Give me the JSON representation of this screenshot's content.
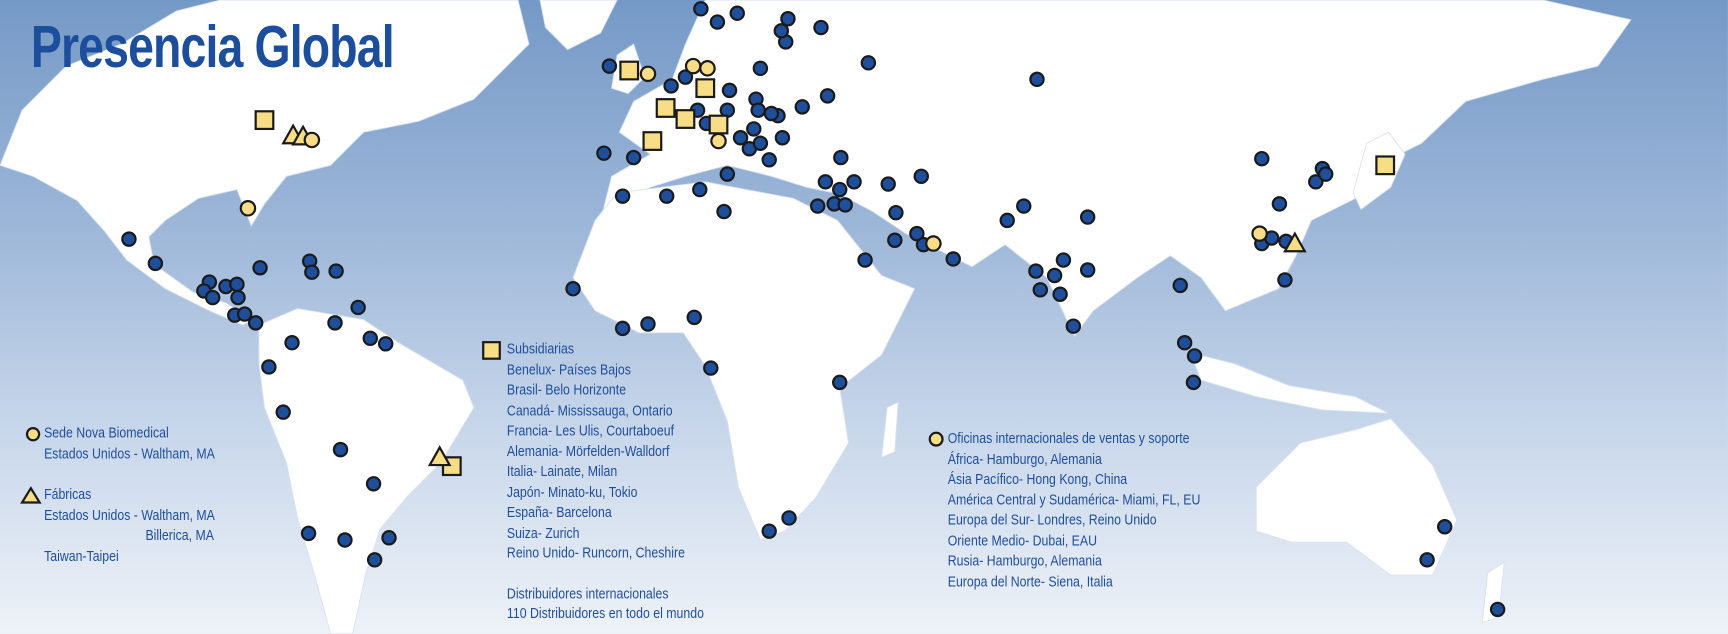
{
  "title": "Presencia Global",
  "colors": {
    "ocean_top": "#7599c7",
    "land": "#ffffff",
    "distributor": "#1f4e9a",
    "office": "#f7dd86",
    "title": "#1c4e9c"
  },
  "legend": {
    "headquarters": {
      "icon": "yellow-circle",
      "heading": "Sede Nova Biomedical",
      "lines": [
        "Estados Unidos - Waltham, MA"
      ]
    },
    "factories": {
      "icon": "yellow-triangle",
      "heading": "Fábricas",
      "lines": [
        "Estados Unidos - Waltham, MA",
        "Billerica, MA",
        "Taiwan-Taipei"
      ]
    },
    "subsidiaries": {
      "icon": "yellow-square",
      "heading": "Subsidiarias",
      "lines": [
        "Benelux- Países Bajos",
        "Brasil- Belo Horizonte",
        "Canadá- Mississauga, Ontario",
        "Francia- Les Ulis, Courtaboeuf",
        "Alemania- Mörfelden-Walldorf",
        "Italia- Lainate, Milan",
        "Japón- Minato-ku, Tokio",
        "España- Barcelona",
        "Suiza- Zurich",
        "Reino Unido- Runcorn, Cheshire"
      ]
    },
    "distributors": {
      "icon": "blue-circle",
      "heading": "Distribuidores internacionales",
      "lines": [
        "110 Distribuidores en todo el mundo"
      ]
    },
    "offices": {
      "icon": "yellow-circle",
      "heading": "Oficinas internacionales de ventas y soporte",
      "lines": [
        "África- Hamburgo, Alemania",
        "Ásia Pacífico- Hong Kong, China",
        "América Central y Sudamérica- Miami, FL, EU",
        "Europa del Sur- Londres, Reino Unido",
        "Oriente Medio- Dubai, EAU",
        "Rusia- Hamburgo, Alemania",
        "Europa del Norte- Siena, Italia"
      ]
    }
  }
}
